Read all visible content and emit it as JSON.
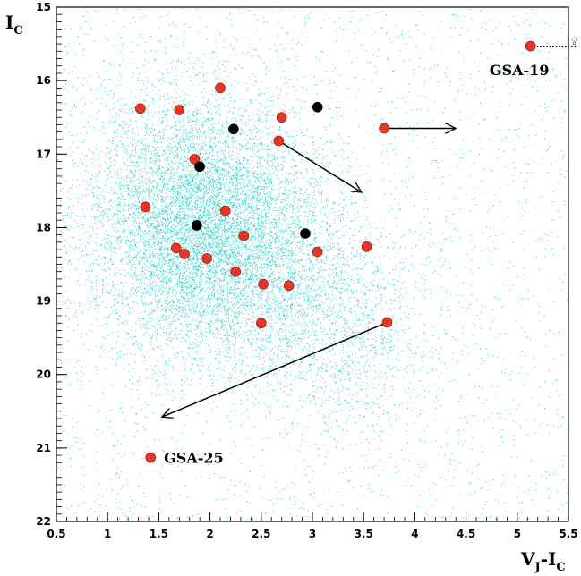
{
  "chart_data": {
    "type": "scatter",
    "xlabel": {
      "main": "V",
      "sub1": "J",
      "mid": "-I",
      "sub2": "C"
    },
    "ylabel": {
      "main": "I",
      "sub": "C"
    },
    "xlim": [
      0.5,
      5.5
    ],
    "ylim": [
      15,
      22
    ],
    "y_inverted": true,
    "x_ticks": [
      0.5,
      1,
      1.5,
      2,
      2.5,
      3,
      3.5,
      4,
      4.5,
      5,
      5.5
    ],
    "y_ticks": [
      15,
      16,
      17,
      18,
      19,
      20,
      21,
      22
    ],
    "x_tick_labels": [
      "0.5",
      "1",
      "1.5",
      "2",
      "2.5",
      "3",
      "3.5",
      "4",
      "4.5",
      "5",
      "5.5"
    ],
    "y_tick_labels": [
      "15",
      "16",
      "17",
      "18",
      "19",
      "20",
      "21",
      "22"
    ],
    "background_field": {
      "color": "#33d6d6",
      "center": [
        1.85,
        17.9
      ],
      "spread": [
        0.55,
        0.9
      ],
      "tail_to": [
        3.6,
        19.6
      ]
    },
    "series": [
      {
        "color": "#ee3322",
        "points": [
          [
            1.32,
            16.38
          ],
          [
            1.7,
            16.4
          ],
          [
            2.1,
            16.1
          ],
          [
            2.7,
            16.5
          ],
          [
            2.67,
            16.82
          ],
          [
            3.7,
            16.65
          ],
          [
            1.85,
            17.07
          ],
          [
            1.37,
            17.72
          ],
          [
            2.15,
            17.77
          ],
          [
            2.33,
            18.11
          ],
          [
            1.67,
            18.28
          ],
          [
            1.75,
            18.36
          ],
          [
            1.97,
            18.42
          ],
          [
            2.25,
            18.6
          ],
          [
            3.05,
            18.33
          ],
          [
            3.53,
            18.26
          ],
          [
            2.52,
            18.77
          ],
          [
            2.77,
            18.79
          ],
          [
            2.5,
            19.3
          ],
          [
            3.73,
            19.29
          ],
          [
            1.42,
            21.13
          ],
          [
            5.13,
            15.53
          ]
        ]
      },
      {
        "color": "#000000",
        "points": [
          [
            2.23,
            16.66
          ],
          [
            3.05,
            16.36
          ],
          [
            1.9,
            17.17
          ],
          [
            1.87,
            17.97
          ],
          [
            2.93,
            18.08
          ]
        ]
      }
    ],
    "arrows": [
      {
        "from": [
          3.7,
          16.65
        ],
        "to": [
          4.4,
          16.65
        ]
      },
      {
        "from": [
          2.67,
          16.82
        ],
        "to": [
          3.48,
          17.52
        ]
      },
      {
        "from": [
          3.73,
          19.29
        ],
        "to": [
          1.53,
          20.58
        ]
      }
    ],
    "dotted_lines": [
      {
        "from": [
          5.13,
          15.53
        ],
        "to": [
          5.5,
          15.53
        ]
      }
    ],
    "annotations": [
      {
        "text": "GSA-19",
        "x": 4.73,
        "y": 15.85
      },
      {
        "text": "GSA-25",
        "x": 1.55,
        "y": 21.13
      }
    ]
  }
}
